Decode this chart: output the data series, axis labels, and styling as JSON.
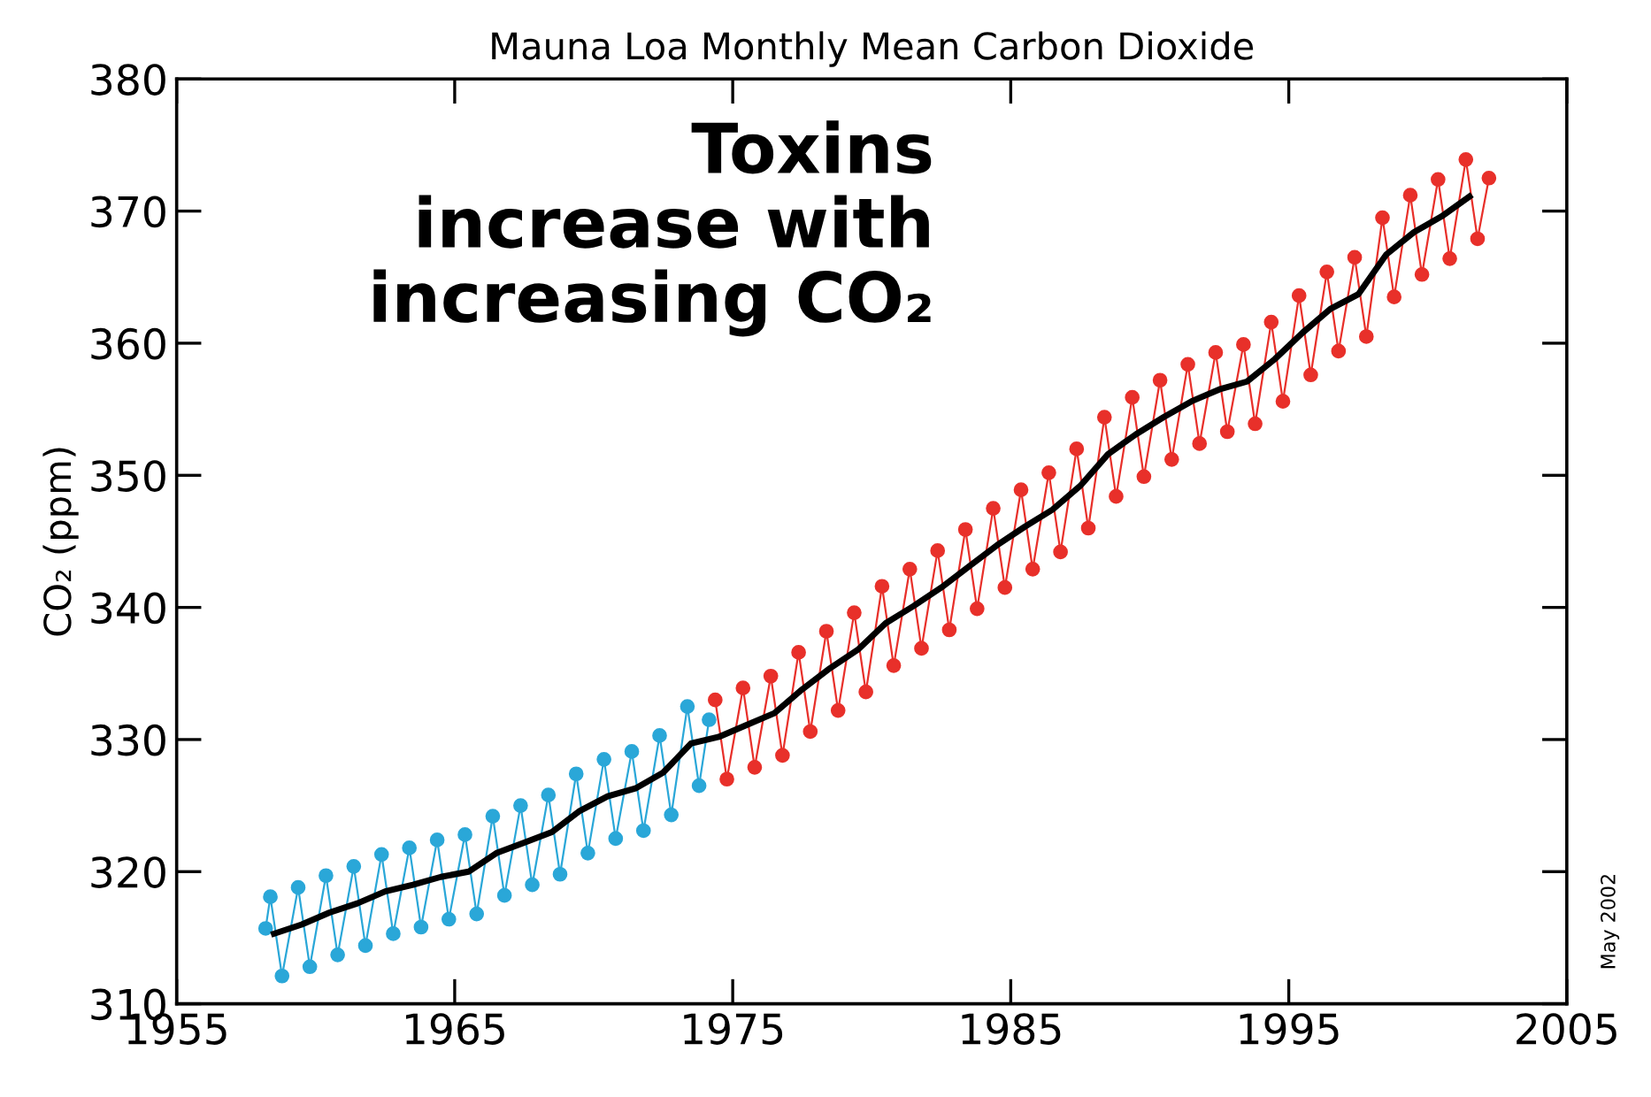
{
  "chart_data": {
    "type": "line",
    "title": "Mauna Loa Monthly Mean Carbon Dioxide",
    "ylabel": "CO₂ (ppm)",
    "xlim": [
      1955,
      2005
    ],
    "xticks": [
      1955,
      1965,
      1975,
      1985,
      1995,
      2005
    ],
    "ylim": [
      310,
      380
    ],
    "yticks": [
      310,
      320,
      330,
      340,
      350,
      360,
      370,
      380
    ],
    "grid": false,
    "legend": false,
    "annotations": [
      "Toxins\nincrease with\nincreasing CO₂",
      "May 2002"
    ],
    "series": [
      {
        "color": "#2aa7d8",
        "marker": "circle",
        "x": [
          1958.2,
          1958.37,
          1958.79,
          1959.37,
          1959.79,
          1960.37,
          1960.79,
          1961.37,
          1961.79,
          1962.37,
          1962.79,
          1963.37,
          1963.79,
          1964.37,
          1964.79,
          1965.37,
          1965.79,
          1966.37,
          1966.79,
          1967.37,
          1967.79,
          1968.37,
          1968.79,
          1969.37,
          1969.79,
          1970.37,
          1970.79,
          1971.37,
          1971.79,
          1972.37,
          1972.79,
          1973.37,
          1973.79,
          1974.15
        ],
        "values": [
          315.7,
          318.1,
          312.1,
          318.8,
          312.8,
          319.7,
          313.7,
          320.4,
          314.4,
          321.3,
          315.3,
          321.8,
          315.8,
          322.4,
          316.4,
          322.8,
          316.8,
          324.2,
          318.2,
          325.0,
          319.0,
          325.8,
          319.8,
          327.4,
          321.4,
          328.5,
          322.5,
          329.1,
          323.1,
          330.3,
          324.3,
          332.5,
          326.5,
          331.5
        ]
      },
      {
        "color": "#e8302a",
        "marker": "circle",
        "x": [
          1974.37,
          1974.79,
          1975.37,
          1975.79,
          1976.37,
          1976.79,
          1977.37,
          1977.79,
          1978.37,
          1978.79,
          1979.37,
          1979.79,
          1980.37,
          1980.79,
          1981.37,
          1981.79,
          1982.37,
          1982.79,
          1983.37,
          1983.79,
          1984.37,
          1984.79,
          1985.37,
          1985.79,
          1986.37,
          1986.79,
          1987.37,
          1987.79,
          1988.37,
          1988.79,
          1989.37,
          1989.79,
          1990.37,
          1990.79,
          1991.37,
          1991.79,
          1992.37,
          1992.79,
          1993.37,
          1993.79,
          1994.37,
          1994.79,
          1995.37,
          1995.79,
          1996.37,
          1996.79,
          1997.37,
          1997.79,
          1998.37,
          1998.79,
          1999.37,
          1999.79,
          2000.37,
          2000.79,
          2001.37,
          2001.79,
          2002.2
        ],
        "values": [
          333.0,
          327.0,
          333.9,
          327.9,
          334.8,
          328.8,
          336.6,
          330.6,
          338.2,
          332.2,
          339.6,
          333.6,
          341.6,
          335.6,
          342.9,
          336.9,
          344.3,
          338.3,
          345.9,
          339.9,
          347.5,
          341.5,
          348.9,
          342.9,
          350.2,
          344.2,
          352.0,
          346.0,
          354.4,
          348.4,
          355.9,
          349.9,
          357.2,
          351.2,
          358.4,
          352.4,
          359.3,
          353.3,
          359.9,
          353.9,
          361.6,
          355.6,
          363.6,
          357.6,
          365.4,
          359.4,
          366.5,
          360.5,
          369.5,
          363.5,
          371.2,
          365.2,
          372.4,
          366.4,
          373.9,
          367.9,
          372.5
        ]
      },
      {
        "color": "#000000",
        "marker": "none",
        "x": [
          1958.5,
          1959.5,
          1960.5,
          1961.5,
          1962.5,
          1963.5,
          1964.5,
          1965.5,
          1966.5,
          1967.5,
          1968.5,
          1969.5,
          1970.5,
          1971.5,
          1972.5,
          1973.5,
          1974.5,
          1975.5,
          1976.5,
          1977.5,
          1978.5,
          1979.5,
          1980.5,
          1981.5,
          1982.5,
          1983.5,
          1984.5,
          1985.5,
          1986.5,
          1987.5,
          1988.5,
          1989.5,
          1990.5,
          1991.5,
          1992.5,
          1993.5,
          1994.5,
          1995.5,
          1996.5,
          1997.5,
          1998.5,
          1999.5,
          2000.5,
          2001.5
        ],
        "values": [
          315.3,
          316.0,
          316.9,
          317.6,
          318.5,
          319.0,
          319.6,
          320.0,
          321.4,
          322.2,
          323.0,
          324.6,
          325.7,
          326.3,
          327.5,
          329.7,
          330.2,
          331.1,
          332.0,
          333.8,
          335.4,
          336.8,
          338.8,
          340.1,
          341.5,
          343.1,
          344.7,
          346.1,
          347.4,
          349.2,
          351.6,
          353.1,
          354.4,
          355.6,
          356.5,
          357.1,
          358.8,
          360.8,
          362.6,
          363.7,
          366.7,
          368.4,
          369.6,
          371.1
        ]
      }
    ]
  }
}
